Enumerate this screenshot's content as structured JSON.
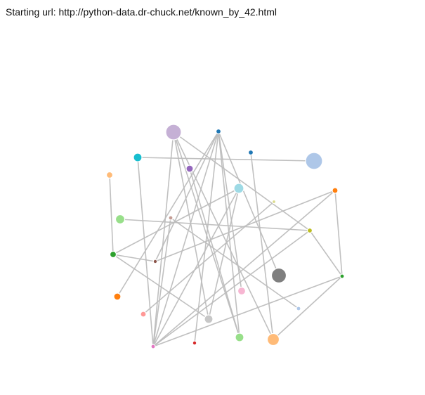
{
  "header": {
    "prefix": "Starting url:",
    "url": "http://python-data.dr-chuck.net/known_by_42.html"
  },
  "graph": {
    "nodes": [
      {
        "id": "n0",
        "color": "#c5b0d5"
      },
      {
        "id": "n1",
        "color": "#1f77b4"
      },
      {
        "id": "n2",
        "color": "#1f77b4"
      },
      {
        "id": "n3",
        "color": "#aec7e8"
      },
      {
        "id": "n4",
        "color": "#17becf"
      },
      {
        "id": "n5",
        "color": "#9467bd"
      },
      {
        "id": "n6",
        "color": "#ffbb78"
      },
      {
        "id": "n7",
        "color": "#9edae5"
      },
      {
        "id": "n8",
        "color": "#ff7f0e"
      },
      {
        "id": "n9",
        "color": "#dbdb8d"
      },
      {
        "id": "n10",
        "color": "#98df8a"
      },
      {
        "id": "n11",
        "color": "#c49c94"
      },
      {
        "id": "n12",
        "color": "#bcbd22"
      },
      {
        "id": "n13",
        "color": "#2ca02c"
      },
      {
        "id": "n14",
        "color": "#8c564b"
      },
      {
        "id": "n15",
        "color": "#7f7f7f"
      },
      {
        "id": "n16",
        "color": "#2ca02c"
      },
      {
        "id": "n17",
        "color": "#ff7f0e"
      },
      {
        "id": "n18",
        "color": "#f7b6d2"
      },
      {
        "id": "n19",
        "color": "#aec7e8"
      },
      {
        "id": "n20",
        "color": "#ff9896"
      },
      {
        "id": "n21",
        "color": "#c7c7c7"
      },
      {
        "id": "n22",
        "color": "#98df8a"
      },
      {
        "id": "n23",
        "color": "#ffbb78"
      },
      {
        "id": "n24",
        "color": "#e377c2"
      },
      {
        "id": "n25",
        "color": "#d62728"
      }
    ],
    "links": [
      [
        "n4",
        "n3"
      ],
      [
        "n6",
        "n13"
      ],
      [
        "n0",
        "n21"
      ],
      [
        "n0",
        "n22"
      ],
      [
        "n0",
        "n12"
      ],
      [
        "n0",
        "n24"
      ],
      [
        "n0",
        "n23"
      ],
      [
        "n1",
        "n17"
      ],
      [
        "n1",
        "n25"
      ],
      [
        "n1",
        "n18"
      ],
      [
        "n1",
        "n15"
      ],
      [
        "n1",
        "n24"
      ],
      [
        "n1",
        "n14"
      ],
      [
        "n1",
        "n22"
      ],
      [
        "n2",
        "n23"
      ],
      [
        "n4",
        "n24"
      ],
      [
        "n5",
        "n22"
      ],
      [
        "n7",
        "n21"
      ],
      [
        "n7",
        "n24"
      ],
      [
        "n7",
        "n13"
      ],
      [
        "n8",
        "n16"
      ],
      [
        "n8",
        "n24"
      ],
      [
        "n9",
        "n20"
      ],
      [
        "n10",
        "n12"
      ],
      [
        "n11",
        "n24"
      ],
      [
        "n11",
        "n19"
      ],
      [
        "n12",
        "n24"
      ],
      [
        "n12",
        "n16"
      ],
      [
        "n13",
        "n21"
      ],
      [
        "n14",
        "n13"
      ],
      [
        "n16",
        "n24"
      ],
      [
        "n16",
        "n23"
      ],
      [
        "n14",
        "n8"
      ]
    ]
  }
}
